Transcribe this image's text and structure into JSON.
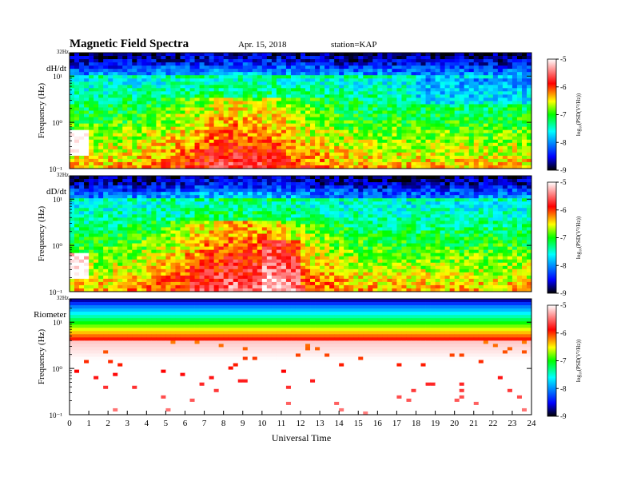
{
  "header": {
    "title": "Magnetic  Field  Spectra",
    "date": "Apr. 15, 2018",
    "station": "station=KAP"
  },
  "chart_data": [
    {
      "type": "heatmap",
      "panel_label": "dH/dt",
      "ylabel": "Frequency  (Hz)",
      "y_scale": "log",
      "y_top_label": "32Hz",
      "y_ticks": [
        {
          "value": 10,
          "label": "10¹"
        },
        {
          "value": 1,
          "label": "10⁰"
        },
        {
          "value": 0.1,
          "label": "10⁻¹"
        }
      ],
      "xlim": [
        0,
        24
      ],
      "colorbar": {
        "label": "log₁₀(PSD(V²/Hz))",
        "range": [
          -9,
          -5
        ],
        "ticks": [
          "-5",
          "-6",
          "-7",
          "-8",
          "-9"
        ]
      }
    },
    {
      "type": "heatmap",
      "panel_label": "dD/dt",
      "ylabel": "Frequency  (Hz)",
      "y_scale": "log",
      "y_top_label": "32Hz",
      "y_ticks": [
        {
          "value": 10,
          "label": "10¹"
        },
        {
          "value": 1,
          "label": "10⁰"
        },
        {
          "value": 0.1,
          "label": "10⁻¹"
        }
      ],
      "xlim": [
        0,
        24
      ],
      "colorbar": {
        "label": "log₁₀(PSD(V²/Hz))",
        "range": [
          -9,
          -5
        ],
        "ticks": [
          "-5",
          "-6",
          "-7",
          "-8",
          "-9"
        ]
      }
    },
    {
      "type": "heatmap",
      "panel_label": "Riometer",
      "ylabel": "Frequency  (Hz)",
      "y_scale": "log",
      "y_top_label": "32Hz",
      "y_ticks": [
        {
          "value": 10,
          "label": "10¹"
        },
        {
          "value": 1,
          "label": "10⁰"
        },
        {
          "value": 0.1,
          "label": "10⁻¹"
        }
      ],
      "xlim": [
        0,
        24
      ],
      "colorbar": {
        "label": "log₁₀(PSD(V²/Hz))",
        "range": [
          -9,
          -5
        ],
        "ticks": [
          "-5",
          "-6",
          "-7",
          "-8",
          "-9"
        ]
      }
    }
  ],
  "x_axis": {
    "label": "Universal  Time",
    "ticks": [
      "0",
      "1",
      "2",
      "3",
      "4",
      "5",
      "6",
      "7",
      "8",
      "9",
      "10",
      "11",
      "12",
      "13",
      "14",
      "15",
      "16",
      "17",
      "18",
      "19",
      "20",
      "21",
      "22",
      "23",
      "24"
    ]
  },
  "colormap": [
    "#000000",
    "#0000ff",
    "#00ffff",
    "#00ff00",
    "#ffff00",
    "#ff0000",
    "#ffffff"
  ]
}
